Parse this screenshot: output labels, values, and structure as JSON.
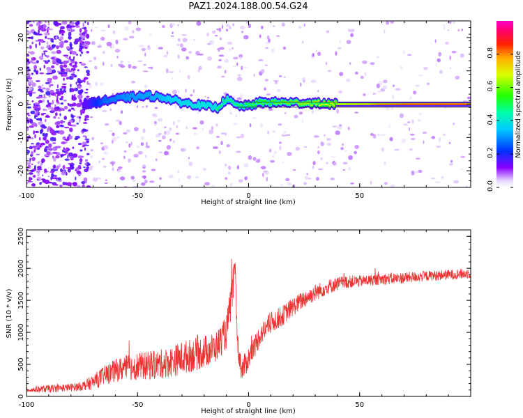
{
  "title": "PAZ1.2024.188.00.54.G24",
  "chart_data": [
    {
      "type": "heatmap",
      "xlabel": "Height of straight line (km)",
      "ylabel": "Frequency (Hz)",
      "xlim": [
        -100,
        100
      ],
      "ylim": [
        -25,
        25
      ],
      "xticks": [
        -100,
        -50,
        0,
        50
      ],
      "yticks": [
        -20,
        -10,
        0,
        10,
        20
      ],
      "colorbar": {
        "label": "Normalized spectral amplitude",
        "ticks": [
          0.0,
          0.2,
          0.4,
          0.6,
          0.8
        ],
        "range": [
          0,
          1
        ],
        "colormap": "white-purple-blue-cyan-green-yellow-red-magenta"
      },
      "ridge": {
        "x": [
          -73,
          -65,
          -55,
          -45,
          -38,
          -30,
          -20,
          -14,
          -10,
          -5,
          0,
          5,
          10,
          20,
          30,
          40,
          50,
          60,
          70,
          80,
          90,
          100
        ],
        "frequency": [
          0,
          1,
          2,
          2.5,
          2,
          0.5,
          -0.5,
          -1,
          1.5,
          -0.5,
          -0.5,
          0.5,
          0.5,
          0.5,
          0.3,
          0,
          0,
          0,
          0,
          0,
          0,
          0
        ],
        "amplitude": [
          0.2,
          0.35,
          0.4,
          0.42,
          0.45,
          0.5,
          0.52,
          0.5,
          0.48,
          0.5,
          0.52,
          0.55,
          0.57,
          0.6,
          0.65,
          0.7,
          0.75,
          0.82,
          0.85,
          0.86,
          0.87,
          0.88
        ]
      },
      "noise": "scattered low-amplitude speckle across all frequencies, dense for x < -73 km"
    },
    {
      "type": "line",
      "xlabel": "Height of straight line (km)",
      "ylabel": "SNR (10 * v/v)",
      "xlim": [
        -100,
        100
      ],
      "ylim": [
        0,
        2600
      ],
      "xticks": [
        -100,
        -50,
        0,
        50
      ],
      "yticks": [
        0,
        500,
        1000,
        1500,
        2000,
        2500
      ],
      "color": "#ee3333",
      "x": [
        -100,
        -90,
        -80,
        -75,
        -70,
        -65,
        -60,
        -55,
        -50,
        -45,
        -40,
        -35,
        -30,
        -25,
        -20,
        -15,
        -12,
        -10,
        -7,
        -6,
        -5,
        -3,
        0,
        3,
        5,
        10,
        15,
        20,
        25,
        30,
        35,
        40,
        45,
        50,
        60,
        70,
        80,
        90,
        100
      ],
      "values": [
        100,
        120,
        140,
        160,
        220,
        330,
        400,
        450,
        470,
        480,
        500,
        540,
        600,
        650,
        700,
        760,
        900,
        1000,
        1700,
        2050,
        800,
        400,
        600,
        800,
        950,
        1150,
        1250,
        1400,
        1520,
        1620,
        1700,
        1760,
        1790,
        1800,
        1830,
        1850,
        1880,
        1900,
        1920
      ],
      "noise_amplitude": [
        40,
        60,
        60,
        70,
        120,
        150,
        180,
        200,
        220,
        220,
        230,
        240,
        260,
        260,
        260,
        240,
        250,
        260,
        300,
        100,
        200,
        200,
        180,
        180,
        170,
        170,
        160,
        150,
        140,
        130,
        120,
        110,
        100,
        90,
        90,
        90,
        80,
        80,
        80
      ]
    }
  ]
}
